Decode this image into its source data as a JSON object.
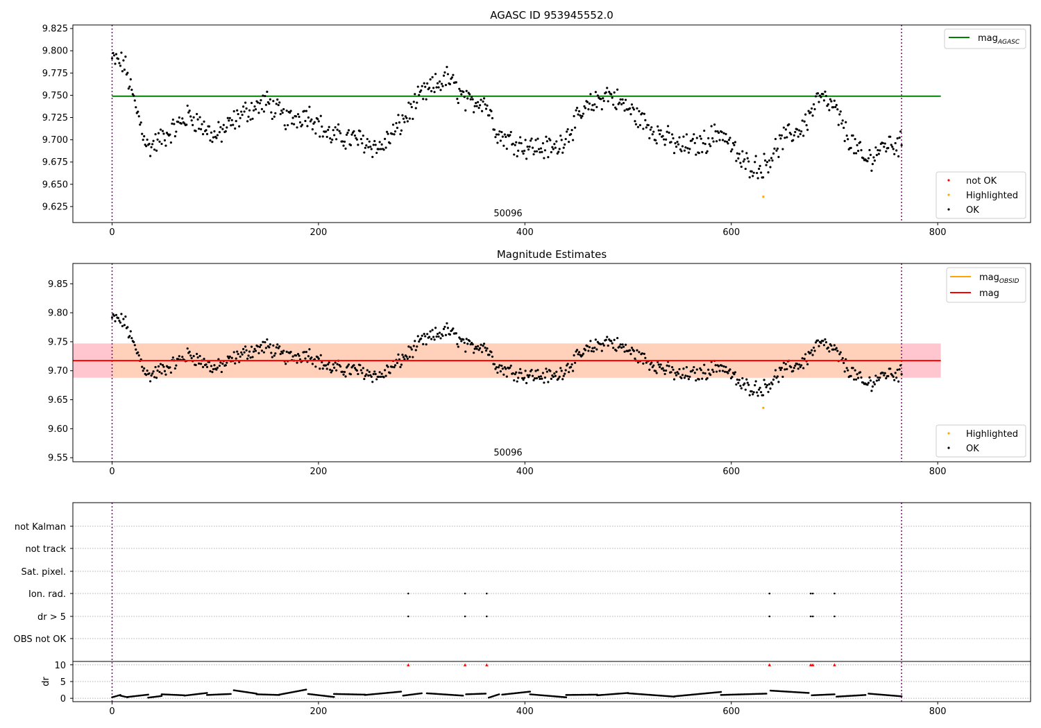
{
  "figure": {
    "panel1_title": "AGASC ID 953945552.0",
    "panel2_title": "Magnitude Estimates",
    "obsid_label": "50096"
  },
  "colors": {
    "ok": "#000000",
    "not_ok": "#ff0000",
    "highlighted": "#ffa500",
    "mag_agasc": "#008000",
    "mag_obsid": "#ffa500",
    "mag": "#ff0000",
    "obs_boundary": "#800080",
    "band_outer": "#ffc0cb",
    "band_inner": "#ffd1b8"
  },
  "chart_data": [
    {
      "type": "scatter",
      "title": "AGASC ID 953945552.0",
      "xlim": [
        -38,
        890
      ],
      "ylim": [
        9.607,
        9.829
      ],
      "xticks": [
        0,
        200,
        400,
        600,
        800
      ],
      "yticks": [
        9.625,
        9.65,
        9.675,
        9.7,
        9.725,
        9.75,
        9.775,
        9.8,
        9.825
      ],
      "ytick_labels": [
        "9.625",
        "9.650",
        "9.675",
        "9.700",
        "9.725",
        "9.750",
        "9.775",
        "9.800",
        "9.825"
      ],
      "hlines": [
        {
          "name": "mag_AGASC",
          "y": 9.749,
          "x0": 0,
          "x1": 803,
          "color": "#008000"
        }
      ],
      "legend_top": {
        "position": "top-right",
        "entries": [
          {
            "label": "mag",
            "subscript": "AGASC",
            "color": "#008000",
            "marker": "line"
          }
        ]
      },
      "legend_bottom": {
        "position": "bottom-right",
        "entries": [
          {
            "label": "not OK",
            "color": "#ff0000",
            "marker": "dot"
          },
          {
            "label": "Highlighted",
            "color": "#ffa500",
            "marker": "dot"
          },
          {
            "label": "OK",
            "color": "#000000",
            "marker": "dot"
          }
        ]
      },
      "obs_boundaries": [
        0,
        765
      ],
      "obsid_annotation": {
        "text": "50096",
        "x": 382
      },
      "series": [
        {
          "name": "OK",
          "color": "#000000",
          "n_points": 765,
          "x_range": [
            0,
            765
          ],
          "trend_knots": [
            [
              0,
              9.79
            ],
            [
              12,
              9.785
            ],
            [
              22,
              9.74
            ],
            [
              35,
              9.69
            ],
            [
              60,
              9.712
            ],
            [
              75,
              9.728
            ],
            [
              100,
              9.703
            ],
            [
              130,
              9.732
            ],
            [
              150,
              9.742
            ],
            [
              170,
              9.722
            ],
            [
              190,
              9.73
            ],
            [
              210,
              9.705
            ],
            [
              240,
              9.7
            ],
            [
              260,
              9.69
            ],
            [
              280,
              9.718
            ],
            [
              300,
              9.75
            ],
            [
              325,
              9.77
            ],
            [
              345,
              9.74
            ],
            [
              360,
              9.746
            ],
            [
              375,
              9.705
            ],
            [
              400,
              9.693
            ],
            [
              430,
              9.69
            ],
            [
              460,
              9.735
            ],
            [
              480,
              9.752
            ],
            [
              500,
              9.735
            ],
            [
              520,
              9.715
            ],
            [
              550,
              9.692
            ],
            [
              570,
              9.695
            ],
            [
              590,
              9.71
            ],
            [
              610,
              9.675
            ],
            [
              630,
              9.668
            ],
            [
              650,
              9.7
            ],
            [
              670,
              9.715
            ],
            [
              685,
              9.748
            ],
            [
              700,
              9.735
            ],
            [
              712,
              9.705
            ],
            [
              730,
              9.675
            ],
            [
              750,
              9.695
            ],
            [
              765,
              9.695
            ]
          ]
        },
        {
          "name": "Highlighted",
          "color": "#ffa500",
          "points": [
            [
              631,
              9.636
            ]
          ]
        }
      ]
    },
    {
      "type": "scatter",
      "title": "Magnitude Estimates",
      "xlim": [
        -38,
        890
      ],
      "ylim": [
        9.543,
        9.885
      ],
      "xticks": [
        0,
        200,
        400,
        600,
        800
      ],
      "yticks": [
        9.55,
        9.6,
        9.65,
        9.7,
        9.75,
        9.8,
        9.85
      ],
      "ytick_labels": [
        "9.55",
        "9.60",
        "9.65",
        "9.70",
        "9.75",
        "9.80",
        "9.85"
      ],
      "hlines": [
        {
          "name": "mag_OBSID",
          "y": 9.7175,
          "x0": 0,
          "x1": 765,
          "color": "#ffa500"
        },
        {
          "name": "mag",
          "y": 9.7175,
          "x0": -38,
          "x1": 803,
          "color": "#ff0000"
        }
      ],
      "bands": [
        {
          "name": "mag band",
          "y0": 9.688,
          "y1": 9.747,
          "x0": -38,
          "x1": 803,
          "color": "#ffc0cb"
        },
        {
          "name": "mag_OBSID band",
          "y0": 9.688,
          "y1": 9.747,
          "x0": 0,
          "x1": 765,
          "color": "#ffd1b8"
        }
      ],
      "legend_top": {
        "position": "top-right",
        "entries": [
          {
            "label": "mag",
            "subscript": "OBSID",
            "color": "#ffa500",
            "marker": "line"
          },
          {
            "label": "mag",
            "subscript": "",
            "color": "#ff0000",
            "marker": "line"
          }
        ]
      },
      "legend_bottom": {
        "position": "bottom-right",
        "entries": [
          {
            "label": "Highlighted",
            "color": "#ffa500",
            "marker": "dot"
          },
          {
            "label": "OK",
            "color": "#000000",
            "marker": "dot"
          }
        ]
      },
      "obs_boundaries": [
        0,
        765
      ],
      "obsid_annotation": {
        "text": "50096",
        "x": 382
      },
      "series_note": "same OK and Highlighted points as the first panel"
    },
    {
      "type": "scatter",
      "xlim": [
        -38,
        890
      ],
      "xticks": [
        0,
        200,
        400,
        600,
        800
      ],
      "flag_rows": [
        "not Kalman",
        "not track",
        "Sat. pixel.",
        "Ion. rad.",
        "dr > 5",
        "OBS not OK"
      ],
      "flag_points": {
        "Ion. rad.": [
          287,
          342,
          363,
          637,
          677,
          679,
          700
        ],
        "dr > 5": [
          287,
          342,
          363,
          637,
          677,
          679,
          700
        ]
      },
      "dr_panel": {
        "ylabel": "dr",
        "ylim": [
          -1,
          11
        ],
        "yticks": [
          0,
          5,
          10
        ],
        "clip_value": 10,
        "clipped_points": [
          287,
          342,
          363,
          637,
          677,
          679,
          700
        ],
        "clipped_color": "#ff0000",
        "series": {
          "name": "dr",
          "color": "#000000",
          "x_range": [
            0,
            765
          ],
          "segments": [
            {
              "x": [
                0,
                8
              ],
              "values": [
                0.3,
                1.0
              ]
            },
            {
              "x": [
                8,
                15
              ],
              "values": [
                0.8,
                0.3
              ]
            },
            {
              "x": [
                15,
                35
              ],
              "values": [
                0.4,
                1.1
              ]
            },
            {
              "x": [
                35,
                48
              ],
              "values": [
                0.2,
                0.7
              ]
            },
            {
              "x": [
                48,
                70
              ],
              "values": [
                1.2,
                0.9
              ]
            },
            {
              "x": [
                70,
                92
              ],
              "values": [
                0.8,
                1.6
              ]
            },
            {
              "x": [
                92,
                115
              ],
              "values": [
                1.0,
                1.3
              ]
            },
            {
              "x": [
                118,
                140
              ],
              "values": [
                2.4,
                1.4
              ]
            },
            {
              "x": [
                140,
                162
              ],
              "values": [
                1.2,
                1.0
              ]
            },
            {
              "x": [
                162,
                188
              ],
              "values": [
                1.1,
                2.6
              ]
            },
            {
              "x": [
                190,
                215
              ],
              "values": [
                1.3,
                0.4
              ]
            },
            {
              "x": [
                215,
                245
              ],
              "values": [
                1.3,
                1.1
              ]
            },
            {
              "x": [
                245,
                280
              ],
              "values": [
                1.0,
                2.0
              ]
            },
            {
              "x": [
                282,
                300
              ],
              "values": [
                0.8,
                1.5
              ]
            },
            {
              "x": [
                305,
                340
              ],
              "values": [
                1.5,
                0.8
              ]
            },
            {
              "x": [
                343,
                362
              ],
              "values": [
                1.2,
                1.4
              ]
            },
            {
              "x": [
                365,
                375
              ],
              "values": [
                0.2,
                1.2
              ]
            },
            {
              "x": [
                378,
                405
              ],
              "values": [
                1.1,
                2.0
              ]
            },
            {
              "x": [
                405,
                440
              ],
              "values": [
                1.2,
                0.3
              ]
            },
            {
              "x": [
                440,
                470
              ],
              "values": [
                1.0,
                1.1
              ]
            },
            {
              "x": [
                470,
                500
              ],
              "values": [
                0.9,
                1.6
              ]
            },
            {
              "x": [
                500,
                545
              ],
              "values": [
                1.5,
                0.5
              ]
            },
            {
              "x": [
                545,
                590
              ],
              "values": [
                0.6,
                1.9
              ]
            },
            {
              "x": [
                590,
                634
              ],
              "values": [
                1.0,
                1.4
              ]
            },
            {
              "x": [
                638,
                675
              ],
              "values": [
                2.3,
                1.6
              ]
            },
            {
              "x": [
                678,
                700
              ],
              "values": [
                0.9,
                1.2
              ]
            },
            {
              "x": [
                702,
                730
              ],
              "values": [
                0.5,
                1.0
              ]
            },
            {
              "x": [
                733,
                765
              ],
              "values": [
                1.4,
                0.6
              ]
            }
          ]
        }
      }
    }
  ]
}
